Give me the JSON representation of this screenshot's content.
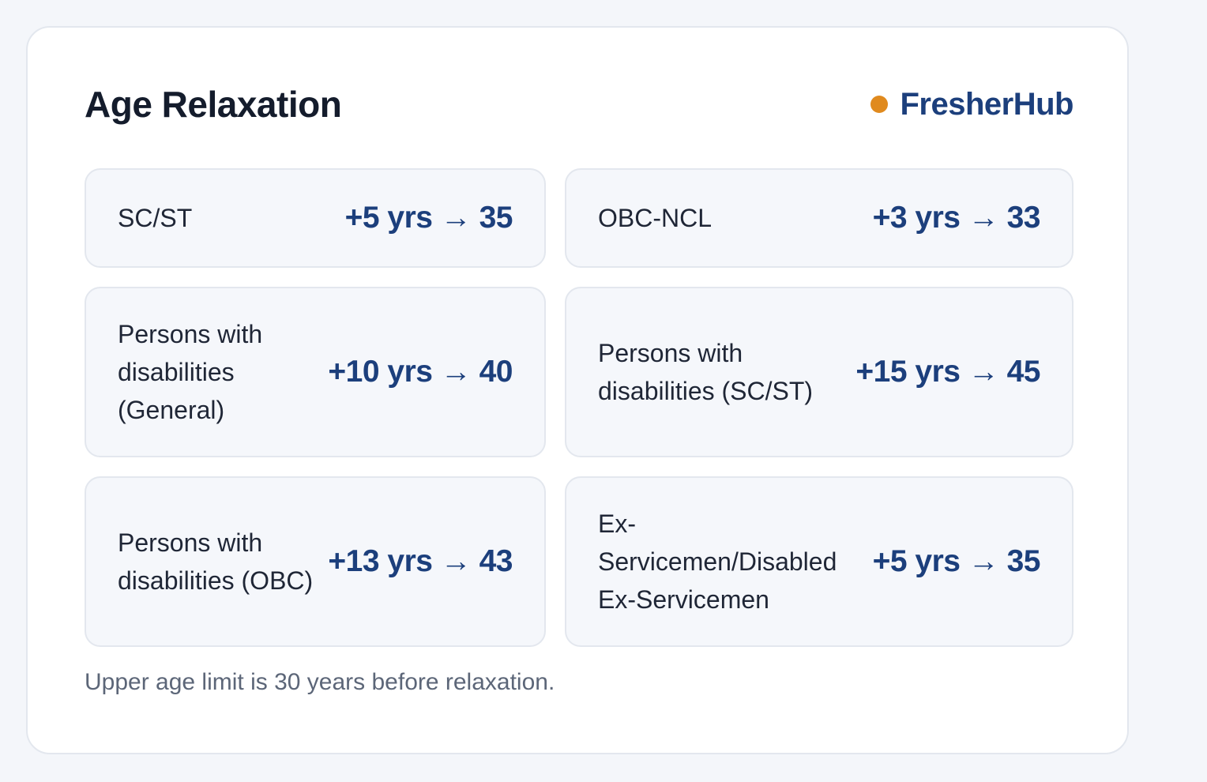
{
  "header": {
    "title": "Age Relaxation",
    "brand": "FresherHub"
  },
  "colors": {
    "accent_dot": "#e08a1e",
    "brand_blue": "#1c3f7c"
  },
  "items": [
    {
      "label": "SC/ST",
      "value": "+5 yrs → 35"
    },
    {
      "label": "OBC-NCL",
      "value": "+3 yrs → 33"
    },
    {
      "label": "Persons with disabilities (General)",
      "value": "+10 yrs → 40"
    },
    {
      "label": "Persons with disabilities (SC/ST)",
      "value": "+15 yrs → 45"
    },
    {
      "label": "Persons with disabilities (OBC)",
      "value": "+13 yrs → 43"
    },
    {
      "label": "Ex-Servicemen/Disabled Ex-Servicemen",
      "value": "+5 yrs → 35"
    }
  ],
  "footer": {
    "note": "Upper age limit is 30 years before relaxation."
  }
}
